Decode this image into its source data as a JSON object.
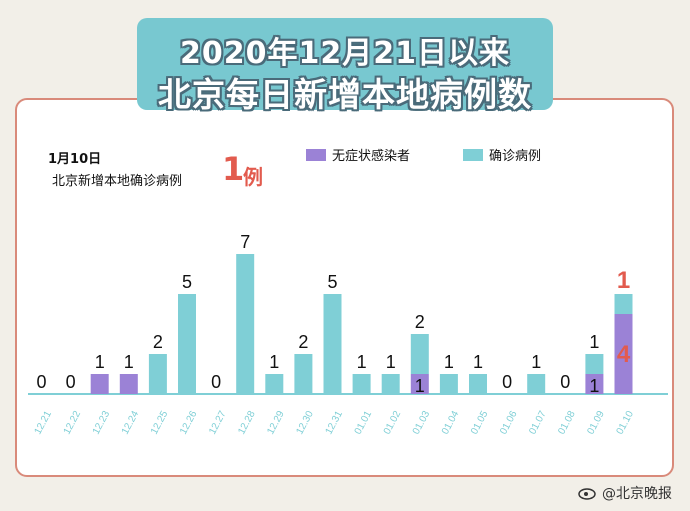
{
  "title": {
    "line1": "2020年12月21日以来",
    "line2": "北京每日新增本地病例数"
  },
  "note": {
    "date": "1月10日",
    "text": "北京新增本地确诊病例",
    "number": "1",
    "unit": "例"
  },
  "watermark": "@北京晚报",
  "colors": {
    "confirmed": "#7fcfd6",
    "asymptomatic": "#9b82d6",
    "highlight": "#e25b4e",
    "axis": "#7fcfd6"
  },
  "chart_data": {
    "type": "bar",
    "stacked": true,
    "categories": [
      "12.21",
      "12.22",
      "12.23",
      "12.24",
      "12.25",
      "12.26",
      "12.27",
      "12.28",
      "12.29",
      "12.30",
      "12.31",
      "01.01",
      "01.02",
      "01.03",
      "01.04",
      "01.05",
      "01.06",
      "01.07",
      "01.08",
      "01.09",
      "01.10"
    ],
    "series": [
      {
        "name": "无症状感染者",
        "color": "#9b82d6",
        "values": [
          0,
          0,
          1,
          1,
          0,
          0,
          0,
          0,
          0,
          0,
          0,
          0,
          0,
          1,
          0,
          0,
          0,
          0,
          0,
          1,
          4
        ]
      },
      {
        "name": "确诊病例",
        "color": "#7fcfd6",
        "values": [
          0,
          0,
          0,
          0,
          2,
          5,
          0,
          7,
          1,
          2,
          5,
          1,
          1,
          2,
          1,
          1,
          0,
          1,
          0,
          1,
          1
        ]
      }
    ],
    "labels": {
      "asymptomatic": [
        "",
        "",
        "1",
        "1",
        "",
        "",
        "",
        "",
        "",
        "",
        "",
        "",
        "",
        "1",
        "",
        "",
        "",
        "",
        "",
        "1",
        "4"
      ],
      "confirmed": [
        "0",
        "0",
        "",
        "",
        "2",
        "5",
        "0",
        "7",
        "1",
        "2",
        "5",
        "1",
        "1",
        "2",
        "1",
        "1",
        "0",
        "1",
        "0",
        "1",
        "1"
      ]
    },
    "ylim": [
      0,
      7
    ],
    "legend_position": "top-right",
    "grid": false
  }
}
